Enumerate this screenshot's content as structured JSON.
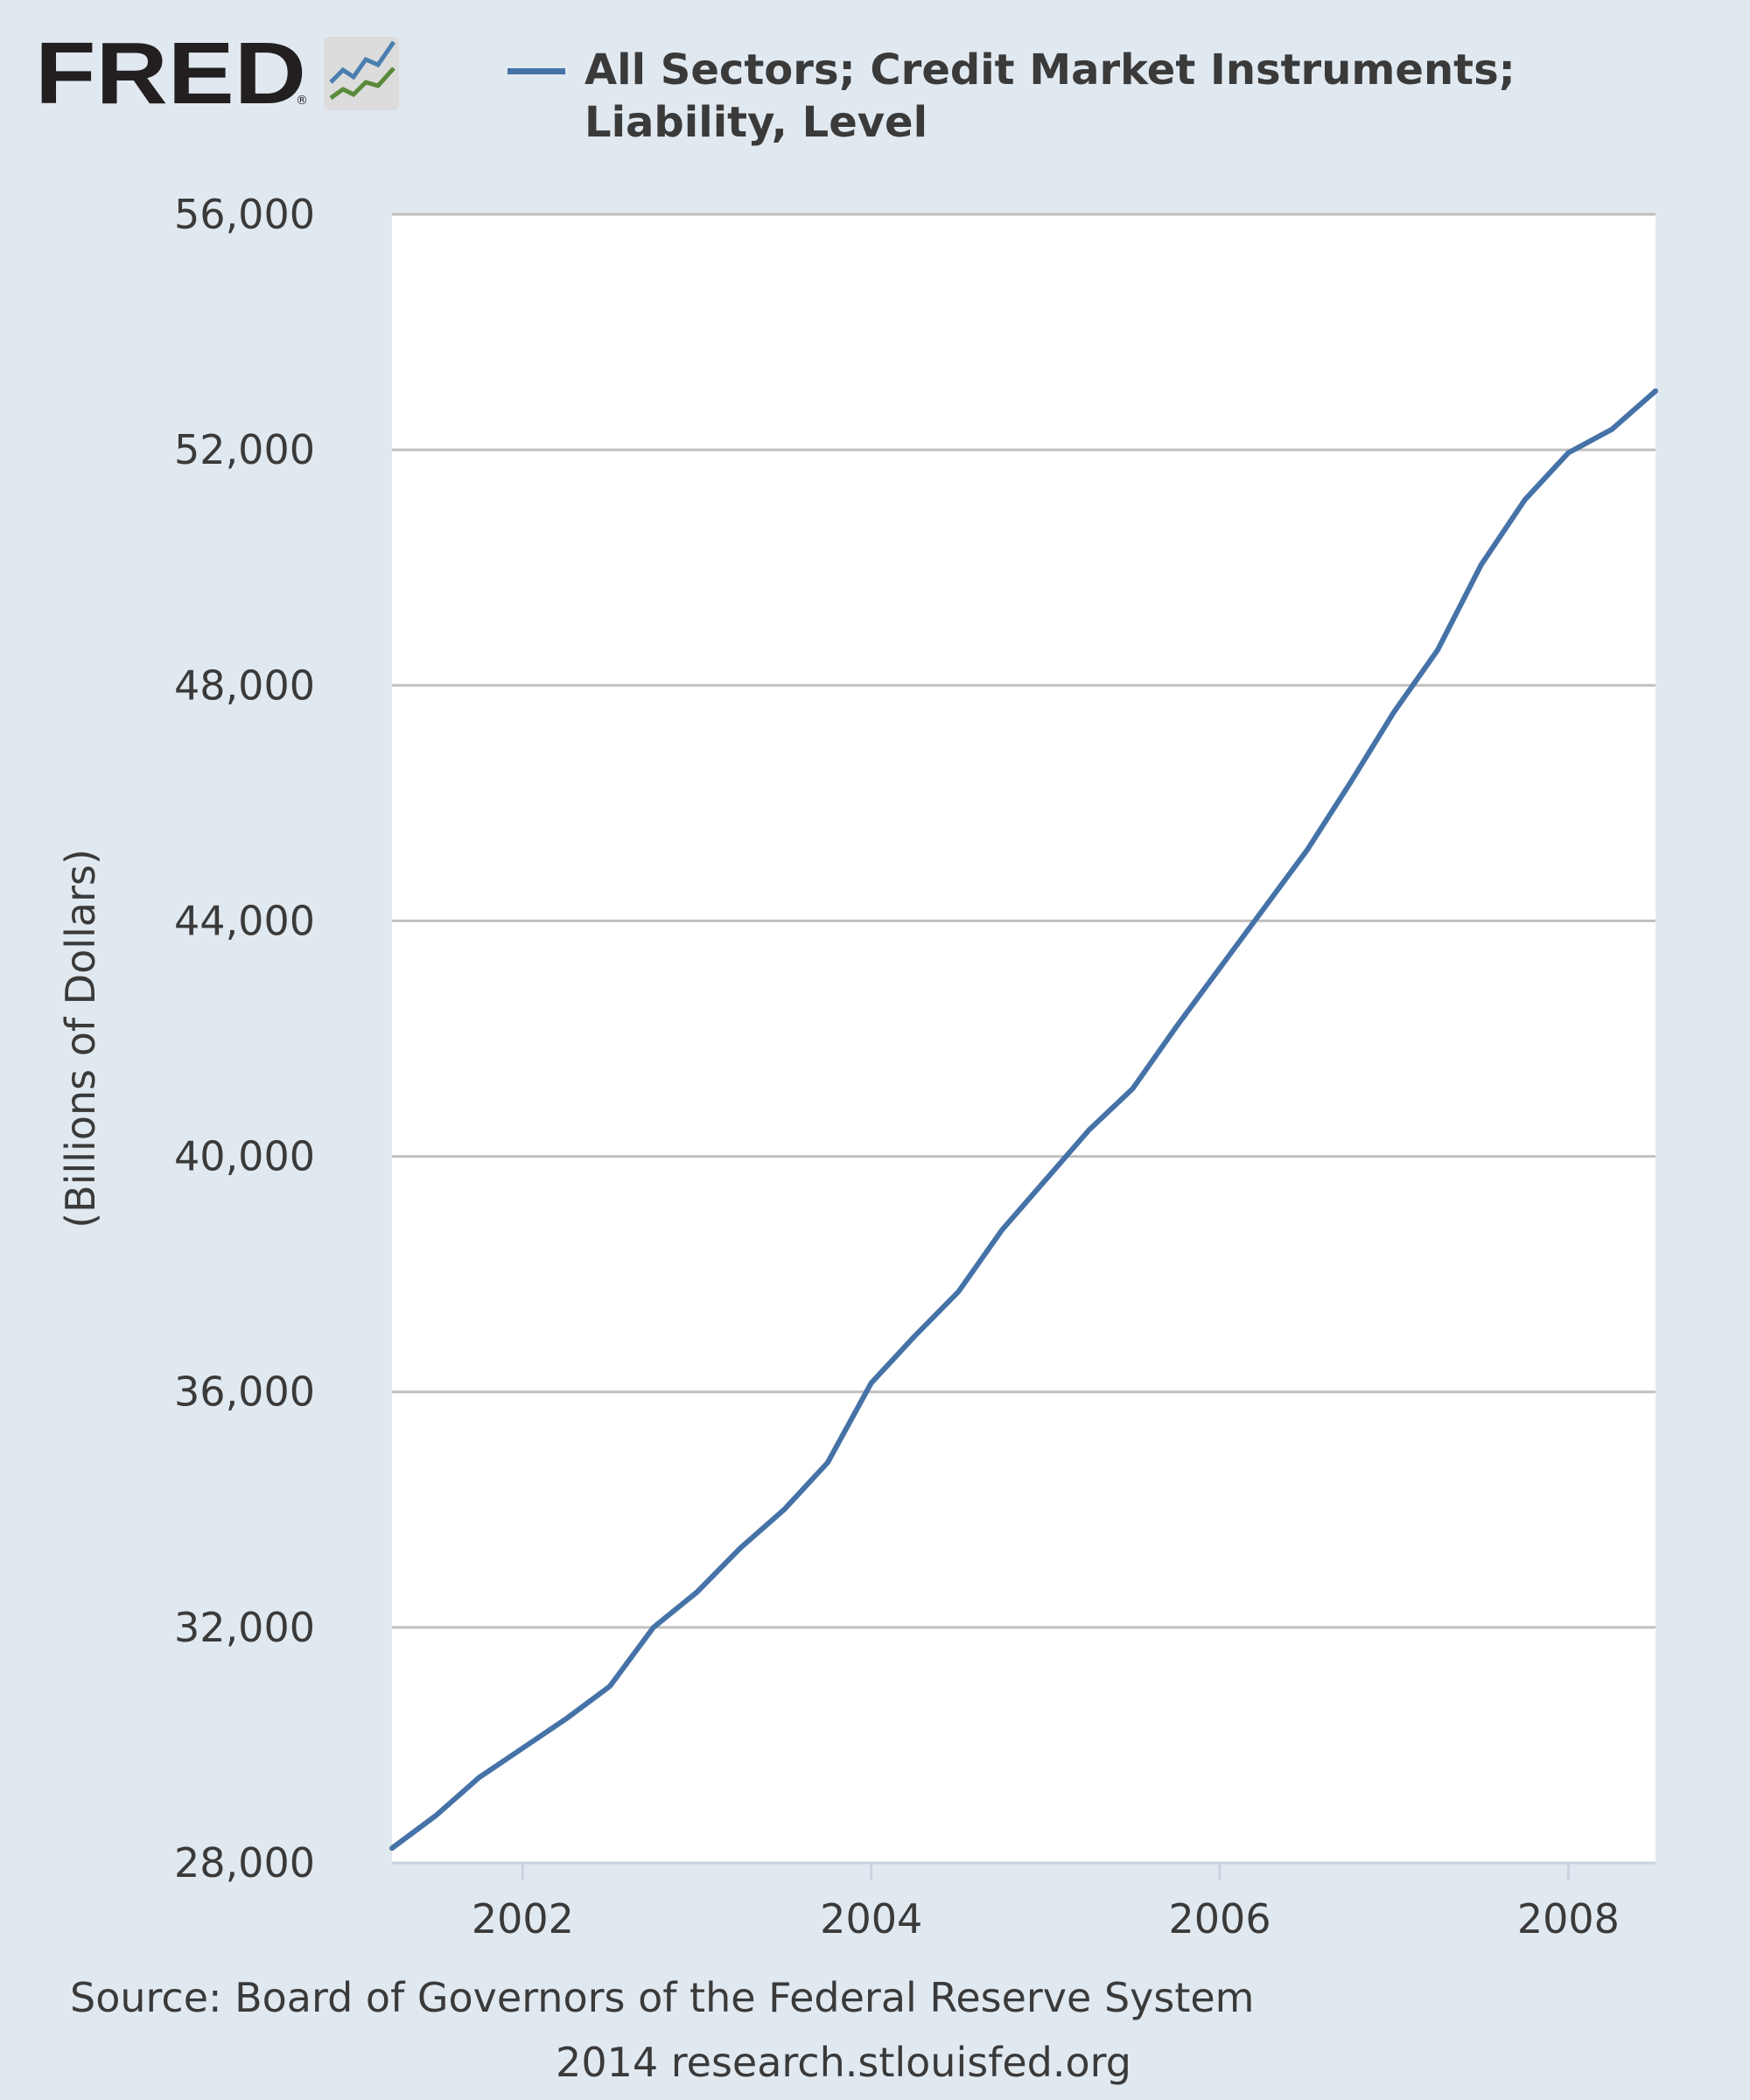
{
  "logo": {
    "text": "FRED",
    "registered": "®",
    "icon": "fred-sparkline-icon"
  },
  "legend": {
    "label": "All Sectors; Credit Market Instruments; Liability, Level",
    "color": "#4572a7"
  },
  "source": "Source: Board of Governors of the Federal Reserve System",
  "credit": "2014 research.stlouisfed.org",
  "colors": {
    "background": "#e1e9f0",
    "plot_background": "#ffffff",
    "gridline": "#c0c0c0",
    "series": "#4572a7",
    "text": "#3a3a3a"
  },
  "chart_data": {
    "type": "line",
    "title": "",
    "xlabel": "",
    "ylabel": "(Billions of Dollars)",
    "xlim": [
      2001.25,
      2008.5
    ],
    "ylim": [
      28000,
      56000
    ],
    "grid": true,
    "legend_placement": "top",
    "x_ticks": [
      2002,
      2004,
      2006,
      2008
    ],
    "x_tick_labels": [
      "2002",
      "2004",
      "2006",
      "2008"
    ],
    "y_ticks": [
      28000,
      32000,
      36000,
      40000,
      44000,
      48000,
      52000,
      56000
    ],
    "y_tick_labels": [
      "28,000",
      "32,000",
      "36,000",
      "40,000",
      "44,000",
      "48,000",
      "52,000",
      "56,000"
    ],
    "series": [
      {
        "name": "All Sectors; Credit Market Instruments; Liability, Level",
        "color": "#4572a7",
        "x": [
          2001.25,
          2001.5,
          2001.75,
          2002.0,
          2002.25,
          2002.5,
          2002.75,
          2003.0,
          2003.25,
          2003.5,
          2003.75,
          2004.0,
          2004.25,
          2004.5,
          2004.75,
          2005.0,
          2005.25,
          2005.5,
          2005.75,
          2006.0,
          2006.25,
          2006.5,
          2006.75,
          2007.0,
          2007.25,
          2007.5,
          2007.75,
          2008.0,
          2008.25,
          2008.5
        ],
        "y": [
          28250,
          28800,
          29450,
          29950,
          30450,
          31000,
          32000,
          32600,
          33350,
          34000,
          34800,
          36150,
          36950,
          37700,
          38750,
          39600,
          40450,
          41150,
          42200,
          43200,
          44200,
          45200,
          46350,
          47550,
          48600,
          50050,
          51150,
          51950,
          52350,
          53000
        ]
      }
    ]
  }
}
